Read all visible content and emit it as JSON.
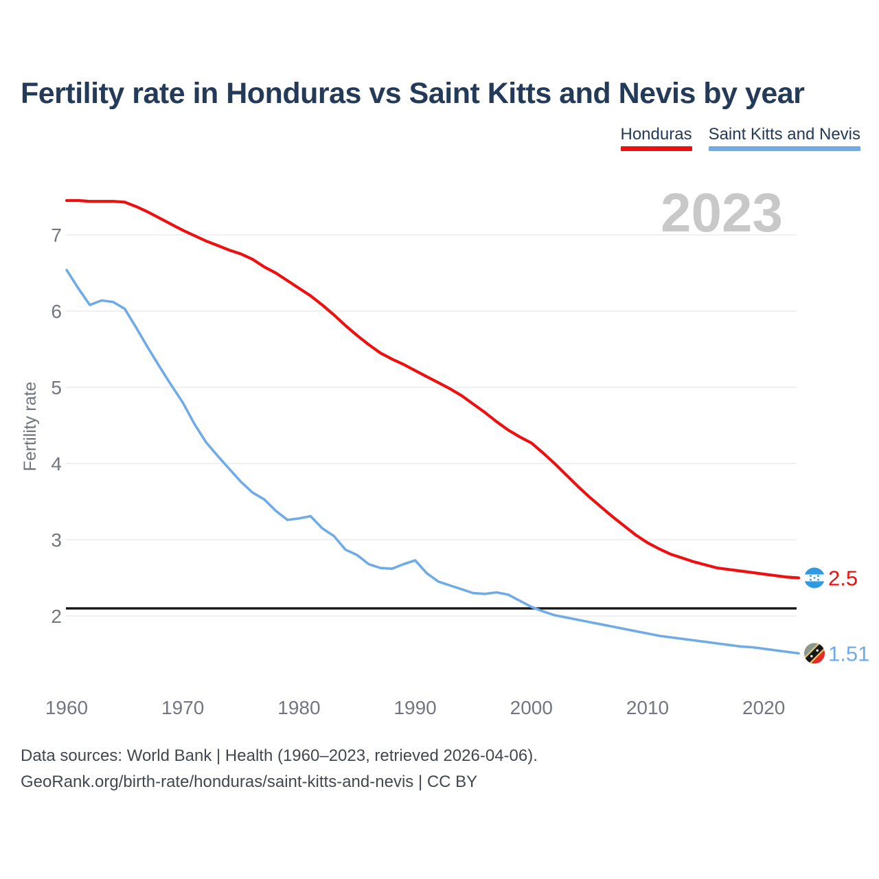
{
  "title": "Fertility rate in Honduras vs Saint Kitts and Nevis by year",
  "watermark": {
    "text": "2023"
  },
  "legend": {
    "items": [
      {
        "label": "Honduras",
        "color": "#ee1010"
      },
      {
        "label": "Saint Kitts and Nevis",
        "color": "#6fabe7"
      }
    ]
  },
  "chart_data": {
    "type": "line",
    "title": "Fertility rate in Honduras vs Saint Kitts and Nevis by year",
    "xlabel": "",
    "ylabel": "Fertility rate",
    "grid": true,
    "legend_position": "top-right",
    "xlim": [
      1960,
      2023
    ],
    "ylim": [
      1.4,
      7.6
    ],
    "x_ticks": [
      1960,
      1970,
      1980,
      1990,
      2000,
      2010,
      2020
    ],
    "y_ticks": [
      7,
      6,
      5,
      4,
      3,
      2
    ],
    "reference_line": {
      "value": 2.1,
      "color": "#171717"
    },
    "x": [
      1960,
      1961,
      1962,
      1963,
      1964,
      1965,
      1966,
      1967,
      1968,
      1969,
      1970,
      1971,
      1972,
      1973,
      1974,
      1975,
      1976,
      1977,
      1978,
      1979,
      1980,
      1981,
      1982,
      1983,
      1984,
      1985,
      1986,
      1987,
      1988,
      1989,
      1990,
      1991,
      1992,
      1993,
      1994,
      1995,
      1996,
      1997,
      1998,
      1999,
      2000,
      2001,
      2002,
      2003,
      2004,
      2005,
      2006,
      2007,
      2008,
      2009,
      2010,
      2011,
      2012,
      2013,
      2014,
      2015,
      2016,
      2017,
      2018,
      2019,
      2020,
      2021,
      2022,
      2023
    ],
    "series": [
      {
        "name": "Honduras",
        "color": "#ee1010",
        "end_label": "2.5",
        "values": [
          7.45,
          7.45,
          7.44,
          7.44,
          7.44,
          7.43,
          7.37,
          7.3,
          7.22,
          7.14,
          7.06,
          6.99,
          6.92,
          6.86,
          6.8,
          6.75,
          6.68,
          6.58,
          6.5,
          6.4,
          6.3,
          6.2,
          6.08,
          5.95,
          5.81,
          5.68,
          5.56,
          5.45,
          5.37,
          5.3,
          5.22,
          5.14,
          5.06,
          4.98,
          4.89,
          4.78,
          4.67,
          4.55,
          4.44,
          4.35,
          4.27,
          4.14,
          4.0,
          3.85,
          3.7,
          3.56,
          3.43,
          3.3,
          3.18,
          3.06,
          2.96,
          2.88,
          2.81,
          2.76,
          2.71,
          2.67,
          2.63,
          2.61,
          2.59,
          2.57,
          2.55,
          2.53,
          2.51,
          2.5
        ]
      },
      {
        "name": "Saint Kitts and Nevis",
        "color": "#6fabe7",
        "end_label": "1.51",
        "values": [
          6.54,
          6.3,
          6.08,
          6.14,
          6.12,
          6.03,
          5.78,
          5.52,
          5.27,
          5.03,
          4.8,
          4.52,
          4.28,
          4.1,
          3.93,
          3.76,
          3.62,
          3.53,
          3.38,
          3.26,
          3.28,
          3.31,
          3.15,
          3.05,
          2.87,
          2.8,
          2.68,
          2.63,
          2.62,
          2.68,
          2.73,
          2.56,
          2.45,
          2.4,
          2.35,
          2.3,
          2.29,
          2.31,
          2.28,
          2.2,
          2.12,
          2.06,
          2.01,
          1.98,
          1.95,
          1.92,
          1.89,
          1.86,
          1.83,
          1.8,
          1.77,
          1.74,
          1.72,
          1.7,
          1.68,
          1.66,
          1.64,
          1.62,
          1.6,
          1.59,
          1.57,
          1.55,
          1.53,
          1.51
        ]
      }
    ]
  },
  "footer": {
    "line1": "Data sources: World Bank | Health (1960–2023, retrieved 2026-04-06).",
    "line2": "GeoRank.org/birth-rate/honduras/saint-kitts-and-nevis | CC BY"
  }
}
